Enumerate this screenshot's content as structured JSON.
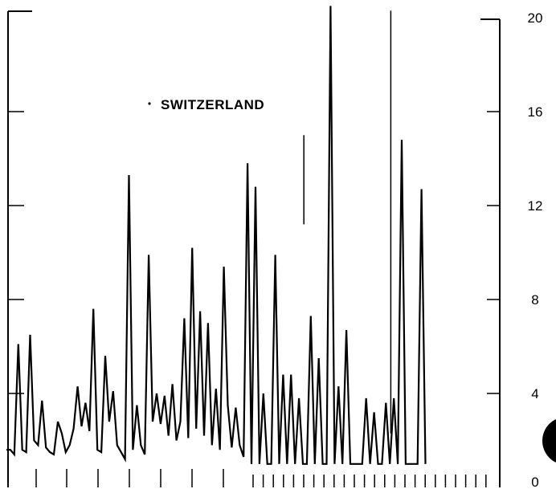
{
  "chart_data": {
    "type": "line",
    "title": "SWITZERLAND",
    "xlabel": "",
    "ylabel": "",
    "ylim": [
      0,
      20
    ],
    "y_ticks": [
      0,
      4,
      8,
      12,
      16,
      20
    ],
    "grid": false,
    "series": [
      {
        "values": [
          1.6,
          1.6,
          1.4,
          6.1,
          1.6,
          1.5,
          6.5,
          2.0,
          1.8,
          3.7,
          1.7,
          1.5,
          1.4,
          2.8,
          2.3,
          1.5,
          1.8,
          2.5,
          4.3,
          2.6,
          3.6,
          2.4,
          7.6,
          1.6,
          1.5,
          5.6,
          2.8,
          4.1,
          1.8,
          1.5,
          1.2,
          13.3,
          1.6,
          3.5,
          1.8,
          1.4,
          9.9,
          2.8,
          4.0,
          2.7,
          3.9,
          2.2,
          4.4,
          2.0,
          2.8,
          7.2,
          2.1,
          10.2,
          2.5,
          7.5,
          2.2,
          7.0,
          1.8,
          4.2,
          1.6,
          9.4,
          3.5,
          1.7,
          3.4,
          1.8,
          1.3,
          13.8,
          1.0,
          12.8,
          1.0,
          4.0,
          1.0,
          1.0,
          9.9,
          1.0,
          4.8,
          1.0,
          4.8,
          1.0,
          3.8,
          1.0,
          1.0,
          7.3,
          1.0,
          5.5,
          1.0,
          1.0,
          20.5,
          1.0,
          4.3,
          1.0,
          6.7,
          1.0,
          1.0,
          1.0,
          1.0,
          3.8,
          1.0,
          3.2,
          1.0,
          1.0,
          3.6,
          1.0,
          3.8,
          1.0,
          14.8,
          1.0,
          1.0,
          1.0,
          1.0,
          12.7,
          1.0
        ]
      }
    ],
    "isolated_spikes": [
      {
        "index": 75,
        "low": 11.2,
        "high": 15.0
      },
      {
        "index": 97,
        "low": 2.3,
        "high": 20.3
      }
    ]
  }
}
